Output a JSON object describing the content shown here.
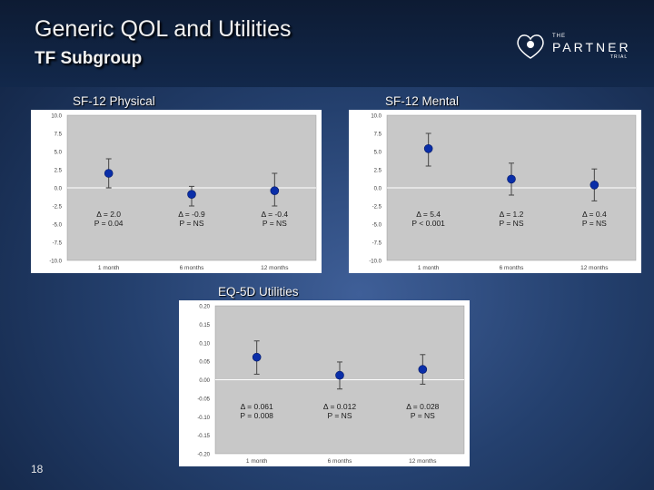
{
  "slide": {
    "title": "Generic QOL and Utilities",
    "subtitle": "TF Subgroup",
    "logo": {
      "small": "THE",
      "main": "PARTNER",
      "trial": "TRIAL"
    },
    "page_number": "18"
  },
  "chart_data": [
    {
      "id": "sf12-physical",
      "type": "scatter",
      "title": "SF-12 Physical",
      "categories": [
        "1 month",
        "6 months",
        "12 months"
      ],
      "values": [
        2.0,
        -0.9,
        -0.4
      ],
      "error_low": [
        0.0,
        -2.5,
        -2.5
      ],
      "error_high": [
        4.0,
        0.2,
        2.0
      ],
      "ylim": [
        -10.0,
        10.0
      ],
      "yticks": [
        "10.0",
        "7.5",
        "5.0",
        "2.5",
        "0.0",
        "-2.5",
        "-5.0",
        "-7.5",
        "-10.0"
      ],
      "annotations": [
        {
          "delta": "Δ = 2.0",
          "p": "P = 0.04"
        },
        {
          "delta": "Δ = -0.9",
          "p": "P = NS"
        },
        {
          "delta": "Δ = -0.4",
          "p": "P = NS"
        }
      ],
      "grid": false
    },
    {
      "id": "sf12-mental",
      "type": "scatter",
      "title": "SF-12 Mental",
      "categories": [
        "1 month",
        "6 months",
        "12 months"
      ],
      "values": [
        5.4,
        1.2,
        0.4
      ],
      "error_low": [
        3.0,
        -1.0,
        -1.8
      ],
      "error_high": [
        7.5,
        3.4,
        2.6
      ],
      "ylim": [
        -10.0,
        10.0
      ],
      "yticks": [
        "10.0",
        "7.5",
        "5.0",
        "2.5",
        "0.0",
        "-2.5",
        "-5.0",
        "-7.5",
        "-10.0"
      ],
      "annotations": [
        {
          "delta": "Δ = 5.4",
          "p": "P < 0.001"
        },
        {
          "delta": "Δ = 1.2",
          "p": "P = NS"
        },
        {
          "delta": "Δ = 0.4",
          "p": "P = NS"
        }
      ],
      "grid": false
    },
    {
      "id": "eq5d",
      "type": "scatter",
      "title": "EQ-5D Utilities",
      "categories": [
        "1 month",
        "6 months",
        "12 months"
      ],
      "values": [
        0.061,
        0.012,
        0.028
      ],
      "error_low": [
        0.015,
        -0.025,
        -0.012
      ],
      "error_high": [
        0.105,
        0.048,
        0.068
      ],
      "ylim": [
        -0.2,
        0.2
      ],
      "yticks": [
        "0.20",
        "0.15",
        "0.10",
        "0.05",
        "0.00",
        "-0.05",
        "-0.10",
        "-0.15",
        "-0.20"
      ],
      "annotations": [
        {
          "delta": "Δ = 0.061",
          "p": "P = 0.008"
        },
        {
          "delta": "Δ = 0.012",
          "p": "P = NS"
        },
        {
          "delta": "Δ = 0.028",
          "p": "P = NS"
        }
      ],
      "grid": false
    }
  ],
  "colors": {
    "plot_bg": "#c8c8c8",
    "plot_frame": "#ffffff",
    "point": "#0a2ea8",
    "error_bar": "#444444",
    "axis_text": "#3a3a3a"
  }
}
